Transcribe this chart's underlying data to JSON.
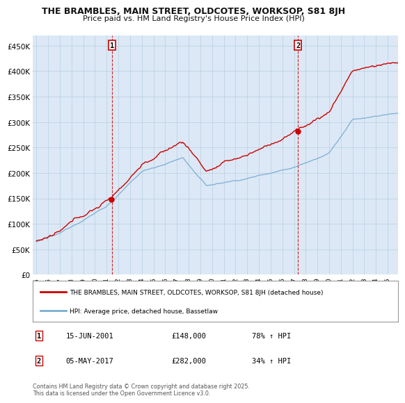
{
  "title": "THE BRAMBLES, MAIN STREET, OLDCOTES, WORKSOP, S81 8JH",
  "subtitle": "Price paid vs. HM Land Registry's House Price Index (HPI)",
  "legend_line1": "THE BRAMBLES, MAIN STREET, OLDCOTES, WORKSOP, S81 8JH (detached house)",
  "legend_line2": "HPI: Average price, detached house, Bassetlaw",
  "marker1_label": "1",
  "marker1_t": 2001.458,
  "marker1_price": 148000,
  "marker1_date_str": "15-JUN-2001",
  "marker1_price_str": "£148,000",
  "marker1_pct_str": "78% ↑ HPI",
  "marker2_label": "2",
  "marker2_t": 2017.333,
  "marker2_price": 282000,
  "marker2_date_str": "05-MAY-2017",
  "marker2_price_str": "£282,000",
  "marker2_pct_str": "34% ↑ HPI",
  "footer": "Contains HM Land Registry data © Crown copyright and database right 2025.\nThis data is licensed under the Open Government Licence v3.0.",
  "red_color": "#cc0000",
  "blue_color": "#7aafd4",
  "dot_color": "#cc0000",
  "vline_color": "#cc0000",
  "bg_chart": "#dce8f5",
  "bg_fig": "#ffffff",
  "grid_color": "#b8cfe0",
  "ylim_min": 0,
  "ylim_max": 470000,
  "xlim_min": 1994.7,
  "xlim_max": 2025.9
}
